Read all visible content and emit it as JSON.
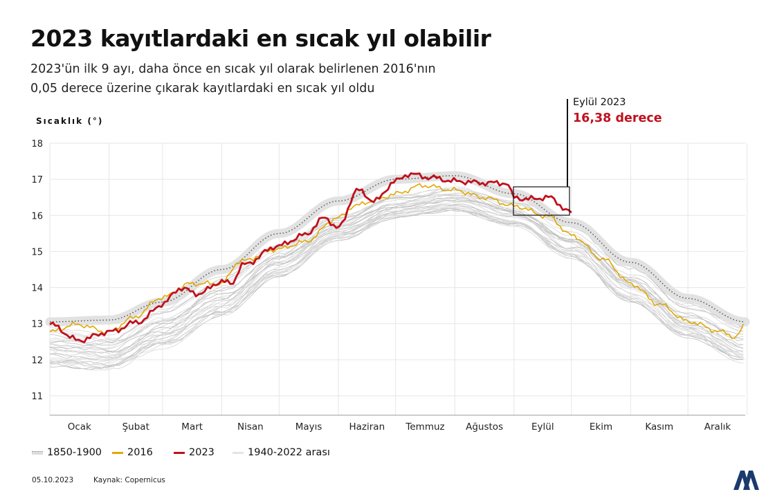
{
  "title": "2023 kayıtlardaki en sıcak yıl olabilir",
  "subtitle_line1": "2023'ün ilk 9 ayı, daha önce en sıcak yıl olarak belirlenen 2016'nın",
  "subtitle_line2": "0,05 derece üzerine çıkarak kayıtlardaki en sıcak yıl oldu",
  "annotation": {
    "label": "Eylül 2023",
    "value": "16,38 derece"
  },
  "legend": [
    {
      "label": "1850-1900"
    },
    {
      "label": "2016"
    },
    {
      "label": "2023"
    },
    {
      "label": "1940-2022 arası"
    }
  ],
  "footer": {
    "date": "05.10.2023",
    "source": "Kaynak: Copernicus"
  },
  "logo": "AA",
  "chart_data": {
    "type": "line",
    "ylabel": "Sıcaklık (°)",
    "ylim": [
      11,
      18
    ],
    "yticks": [
      "11",
      "12",
      "13",
      "14",
      "15",
      "16",
      "17",
      "18"
    ],
    "xticks": [
      "Ocak",
      "Şubat",
      "Mart",
      "Nisan",
      "Mayıs",
      "Haziran",
      "Temmuz",
      "Ağustos",
      "Eylül",
      "Ekim",
      "Kasım",
      "Aralık"
    ],
    "grid": true,
    "legend_position": "bottom-left",
    "colors": {
      "baseline": "#555555",
      "baseline_band": "#e2e2e2",
      "y2016": "#e0a800",
      "y2023": "#c0101d",
      "historic": "#d4d4d4"
    },
    "series": [
      {
        "name": "1850-1900",
        "x": [
          "01-01",
          "02-01",
          "03-01",
          "04-01",
          "05-01",
          "06-01",
          "07-01",
          "08-01",
          "09-01",
          "10-01",
          "11-01",
          "12-01",
          "12-31"
        ],
        "values": [
          13.05,
          13.1,
          13.6,
          14.5,
          15.5,
          16.4,
          17.0,
          17.1,
          16.6,
          15.8,
          14.7,
          13.7,
          13.05
        ]
      },
      {
        "name": "2016",
        "x": [
          "01-01",
          "01-15",
          "02-01",
          "02-13",
          "03-01",
          "03-16",
          "04-01",
          "04-10",
          "05-01",
          "05-14",
          "06-01",
          "06-09",
          "06-20",
          "07-01",
          "07-15",
          "08-01",
          "08-16",
          "09-01",
          "09-19",
          "10-01",
          "10-18",
          "11-01",
          "11-16",
          "12-01",
          "12-19",
          "12-26",
          "12-31"
        ],
        "values": [
          12.77,
          12.98,
          12.77,
          13.15,
          13.73,
          14.11,
          14.11,
          14.72,
          15.07,
          15.26,
          15.93,
          16.26,
          16.41,
          16.6,
          16.83,
          16.7,
          16.5,
          16.26,
          15.97,
          15.45,
          14.78,
          14.11,
          13.54,
          13.06,
          12.77,
          12.62,
          12.96
        ]
      },
      {
        "name": "2023",
        "x": [
          "01-01",
          "01-16",
          "02-01",
          "02-17",
          "03-01",
          "03-10",
          "03-20",
          "04-01",
          "04-06",
          "04-12",
          "05-01",
          "05-14",
          "05-25",
          "06-01",
          "06-11",
          "06-20",
          "07-01",
          "07-08",
          "07-19",
          "08-01",
          "08-17",
          "08-28",
          "09-01",
          "09-08",
          "09-19",
          "10-01"
        ],
        "values": [
          12.98,
          12.54,
          12.77,
          13.06,
          13.54,
          13.98,
          13.83,
          14.17,
          14.11,
          14.63,
          15.16,
          15.45,
          15.93,
          15.65,
          16.7,
          16.4,
          16.95,
          17.15,
          17.05,
          16.95,
          16.9,
          16.9,
          16.5,
          16.45,
          16.5,
          16.08
        ]
      },
      {
        "name": "1940-2022 arası",
        "type": "range",
        "x": [
          "01-01",
          "02-01",
          "03-01",
          "04-01",
          "05-01",
          "06-01",
          "07-01",
          "08-01",
          "09-01",
          "10-01",
          "11-01",
          "12-01",
          "12-31"
        ],
        "low": [
          11.8,
          11.7,
          12.3,
          13.2,
          14.3,
          15.3,
          15.9,
          16.1,
          15.7,
          14.8,
          13.6,
          12.6,
          11.9
        ],
        "high": [
          12.9,
          12.8,
          13.5,
          14.3,
          15.2,
          16.0,
          16.6,
          16.8,
          16.4,
          15.8,
          14.7,
          13.6,
          13.0
        ]
      }
    ]
  }
}
